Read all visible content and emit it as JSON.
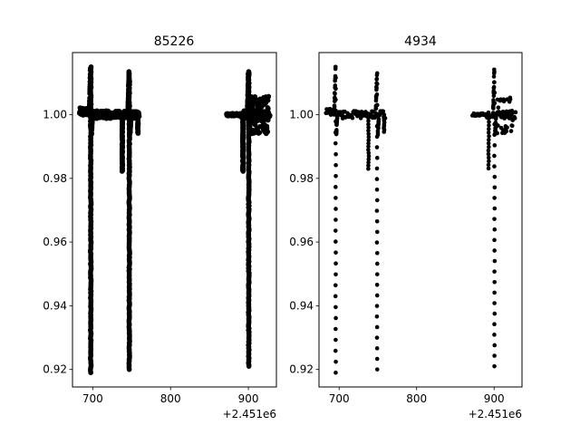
{
  "chart_data": [
    {
      "type": "scatter",
      "title": "85226",
      "xlabel": "",
      "ylabel": "",
      "x_offset_label": "+2.451e6",
      "xlim": [
        674,
        936
      ],
      "ylim": [
        0.9145,
        1.0195
      ],
      "xticks": [
        700,
        800,
        900
      ],
      "yticks": [
        0.92,
        0.94,
        0.96,
        0.98,
        1.0
      ],
      "ytick_labels": [
        "0.92",
        "0.94",
        "0.96",
        "0.98",
        "1.00"
      ],
      "marker_color": "#000000",
      "sampling": "dense",
      "grid": false,
      "transits": [
        {
          "center": 697.5,
          "depth_min": 0.919,
          "peak": 1.015
        },
        {
          "center": 747.0,
          "depth_min": 0.92,
          "peak": 1.013
        },
        {
          "center": 900.5,
          "depth_min": 0.921,
          "peak": 1.0135
        }
      ],
      "segments": [
        [
          683,
          760
        ],
        [
          872,
          928
        ]
      ]
    },
    {
      "type": "scatter",
      "title": "4934",
      "xlabel": "",
      "ylabel": "",
      "x_offset_label": "+2.451e6",
      "xlim": [
        674,
        936
      ],
      "ylim": [
        0.9145,
        1.0195
      ],
      "xticks": [
        700,
        800,
        900
      ],
      "yticks": [
        0.92,
        0.94,
        0.96,
        0.98,
        1.0
      ],
      "ytick_labels": [
        "0.92",
        "0.94",
        "0.96",
        "0.98",
        "1.00"
      ],
      "marker_color": "#000000",
      "sampling": "sparse",
      "grid": false,
      "transits": [
        {
          "center": 695.5,
          "depth_min": 0.919,
          "peak": 1.015
        },
        {
          "center": 749.0,
          "depth_min": 0.92,
          "peak": 1.013
        },
        {
          "center": 900.5,
          "depth_min": 0.921,
          "peak": 1.0135
        }
      ],
      "segments": [
        [
          683,
          760
        ],
        [
          872,
          928
        ]
      ]
    }
  ]
}
